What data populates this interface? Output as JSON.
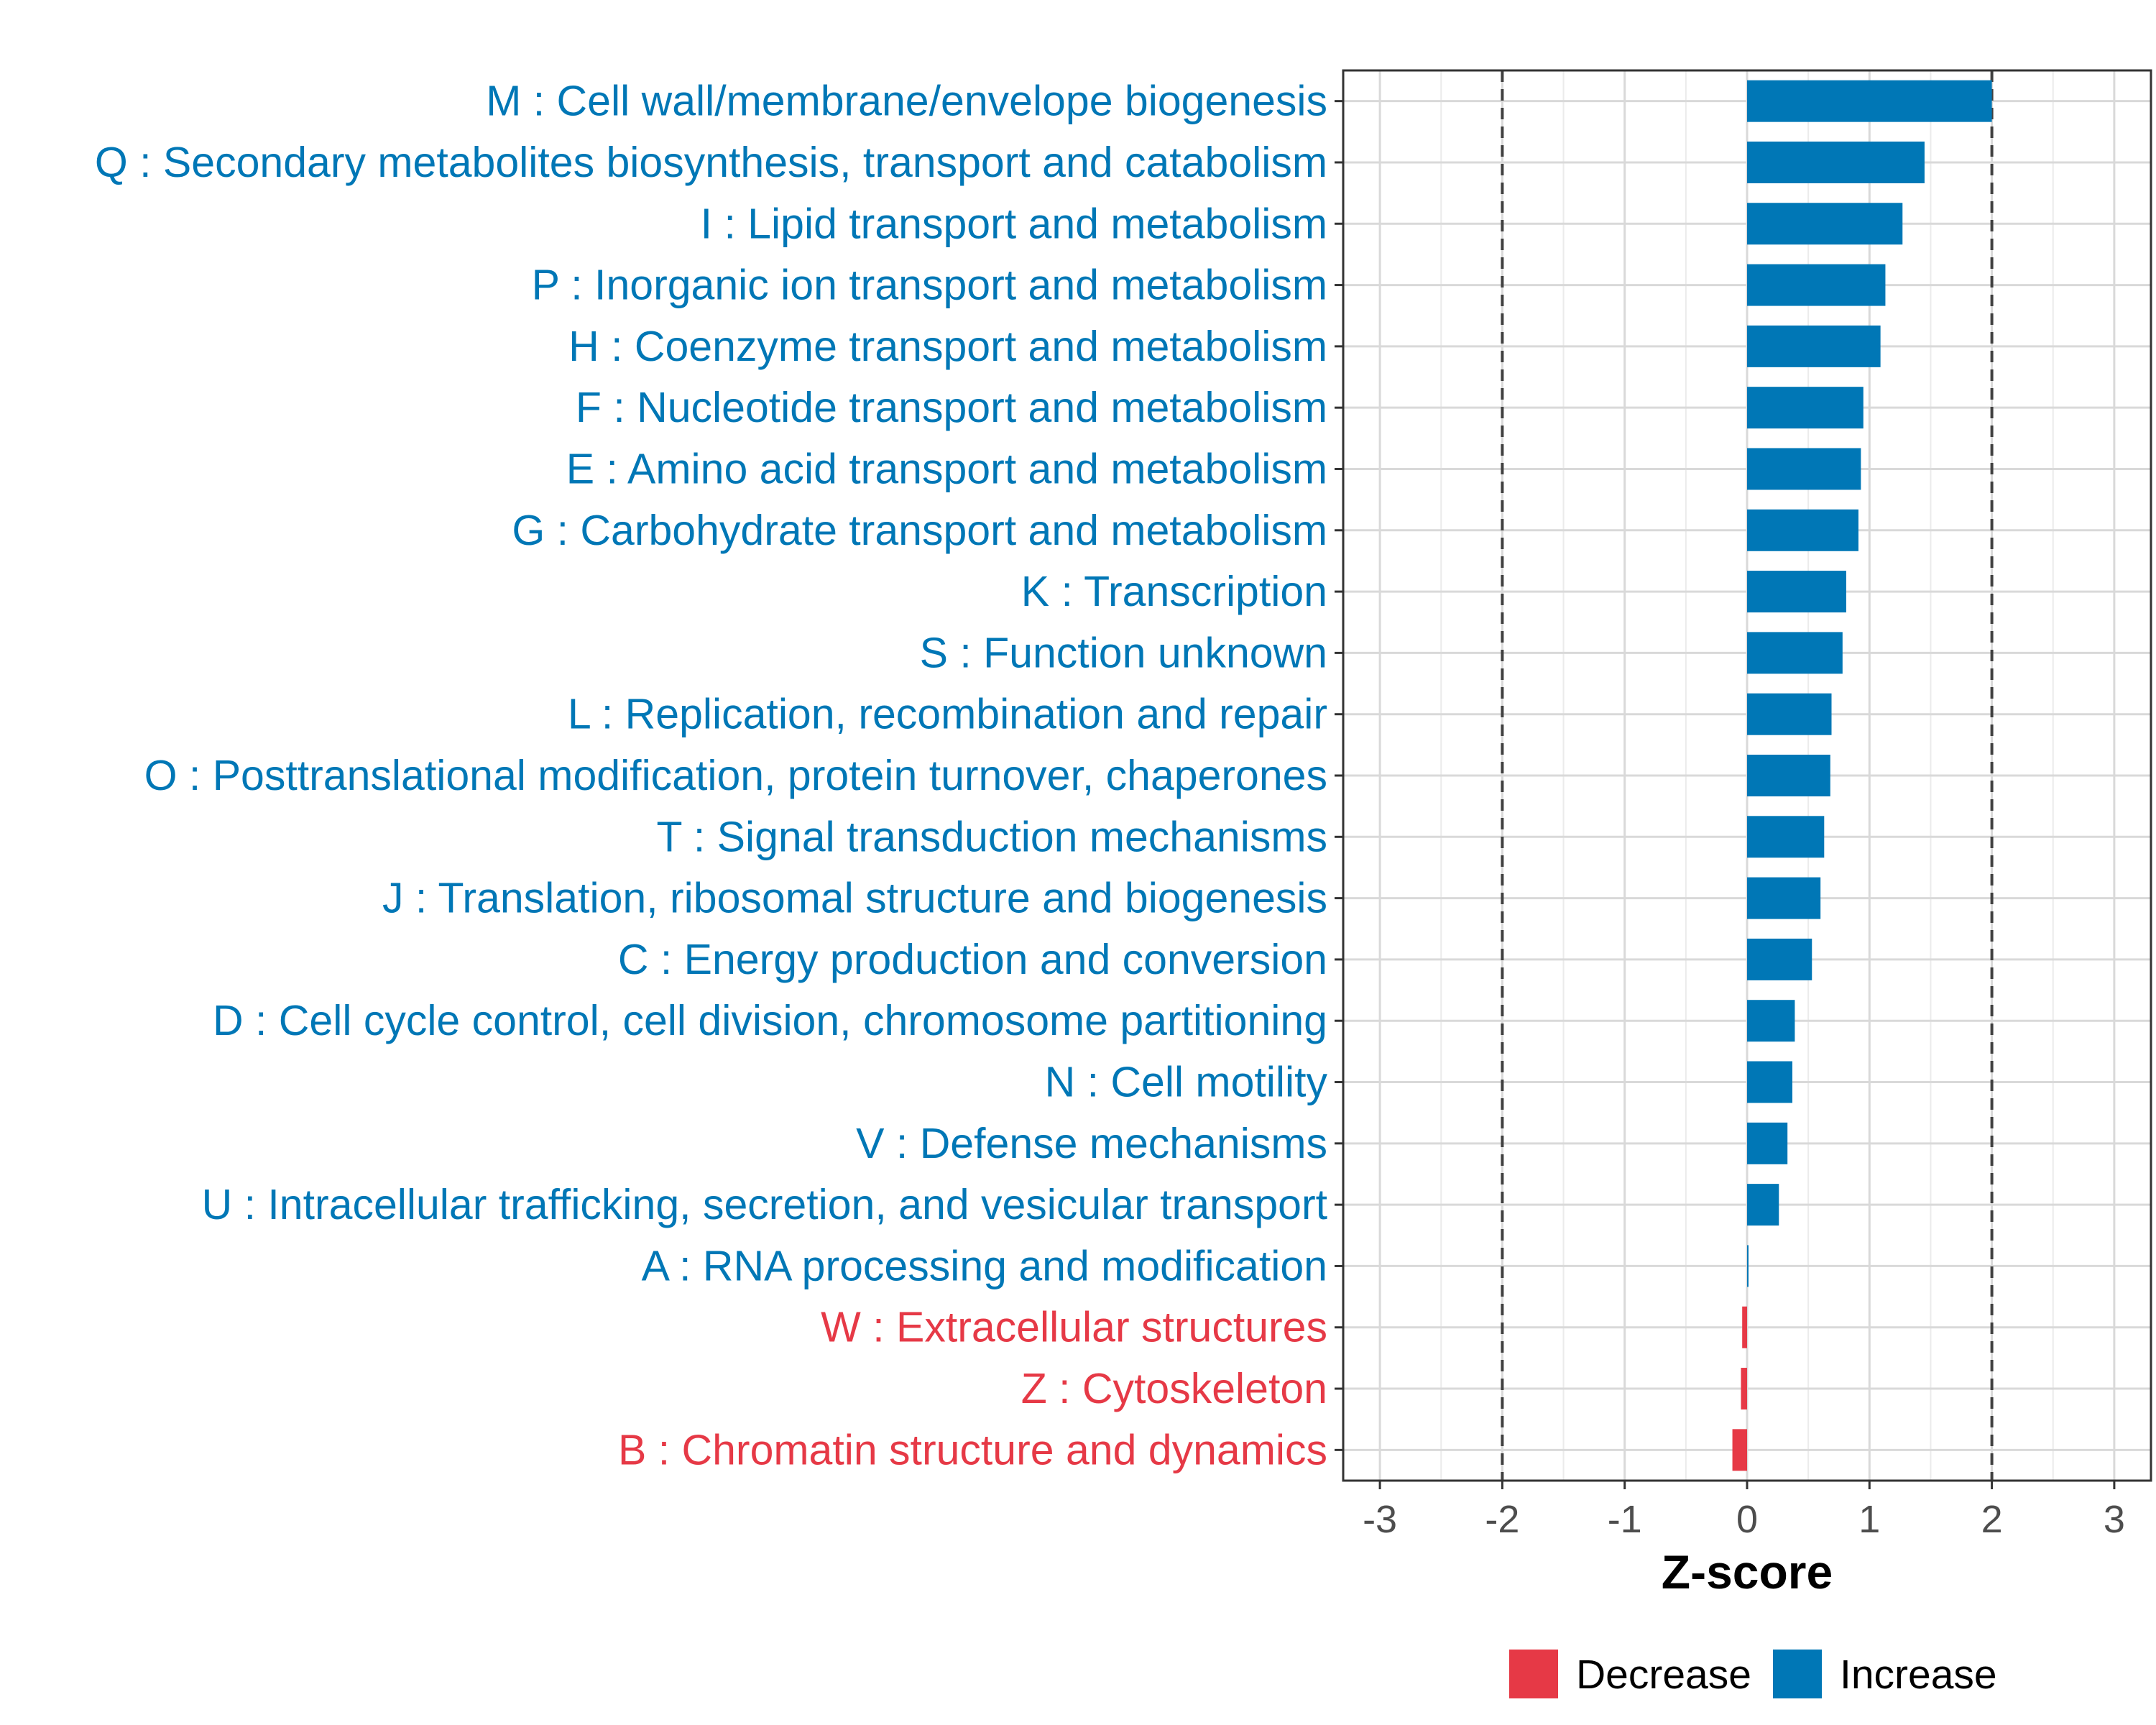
{
  "chart_data": {
    "type": "bar",
    "orientation": "horizontal",
    "xlabel": "Z-score",
    "ylabel": "",
    "xlim": [
      -3.3,
      3.3
    ],
    "x_ticks": [
      -3,
      -2,
      -1,
      0,
      1,
      2,
      3
    ],
    "x_tick_labels": [
      "-3",
      "-2",
      "-1",
      "0",
      "1",
      "2",
      "3"
    ],
    "reference_lines": [
      -2,
      2
    ],
    "grid": true,
    "legend": {
      "position": "bottom",
      "entries": [
        {
          "label": "Decrease",
          "color": "#E63946"
        },
        {
          "label": "Increase",
          "color": "#0077B6"
        }
      ]
    },
    "categories": [
      "M : Cell wall/membrane/envelope biogenesis",
      "Q : Secondary metabolites biosynthesis, transport and catabolism",
      "I : Lipid transport and metabolism",
      "P : Inorganic ion transport and metabolism",
      "H : Coenzyme transport and metabolism",
      "F : Nucleotide transport and metabolism",
      "E : Amino acid transport and metabolism",
      "G : Carbohydrate transport and metabolism",
      "K : Transcription",
      "S : Function unknown",
      "L : Replication, recombination and repair",
      "O : Posttranslational modification, protein turnover, chaperones",
      "T : Signal transduction mechanisms",
      "J : Translation, ribosomal structure and biogenesis",
      "C : Energy production and conversion",
      "D : Cell cycle control, cell division, chromosome partitioning",
      "N : Cell motility",
      "V : Defense mechanisms",
      "U : Intracellular trafficking, secretion, and vesicular transport",
      "A : RNA processing and modification",
      "W : Extracellular structures",
      "Z : Cytoskeleton",
      "B : Chromatin structure and dynamics"
    ],
    "values": [
      2.0,
      1.45,
      1.27,
      1.13,
      1.09,
      0.95,
      0.93,
      0.91,
      0.81,
      0.78,
      0.69,
      0.68,
      0.63,
      0.6,
      0.53,
      0.39,
      0.37,
      0.33,
      0.26,
      0.01,
      -0.04,
      -0.05,
      -0.12
    ],
    "colors": {
      "increase": "#0077B6",
      "decrease": "#E63946"
    }
  }
}
